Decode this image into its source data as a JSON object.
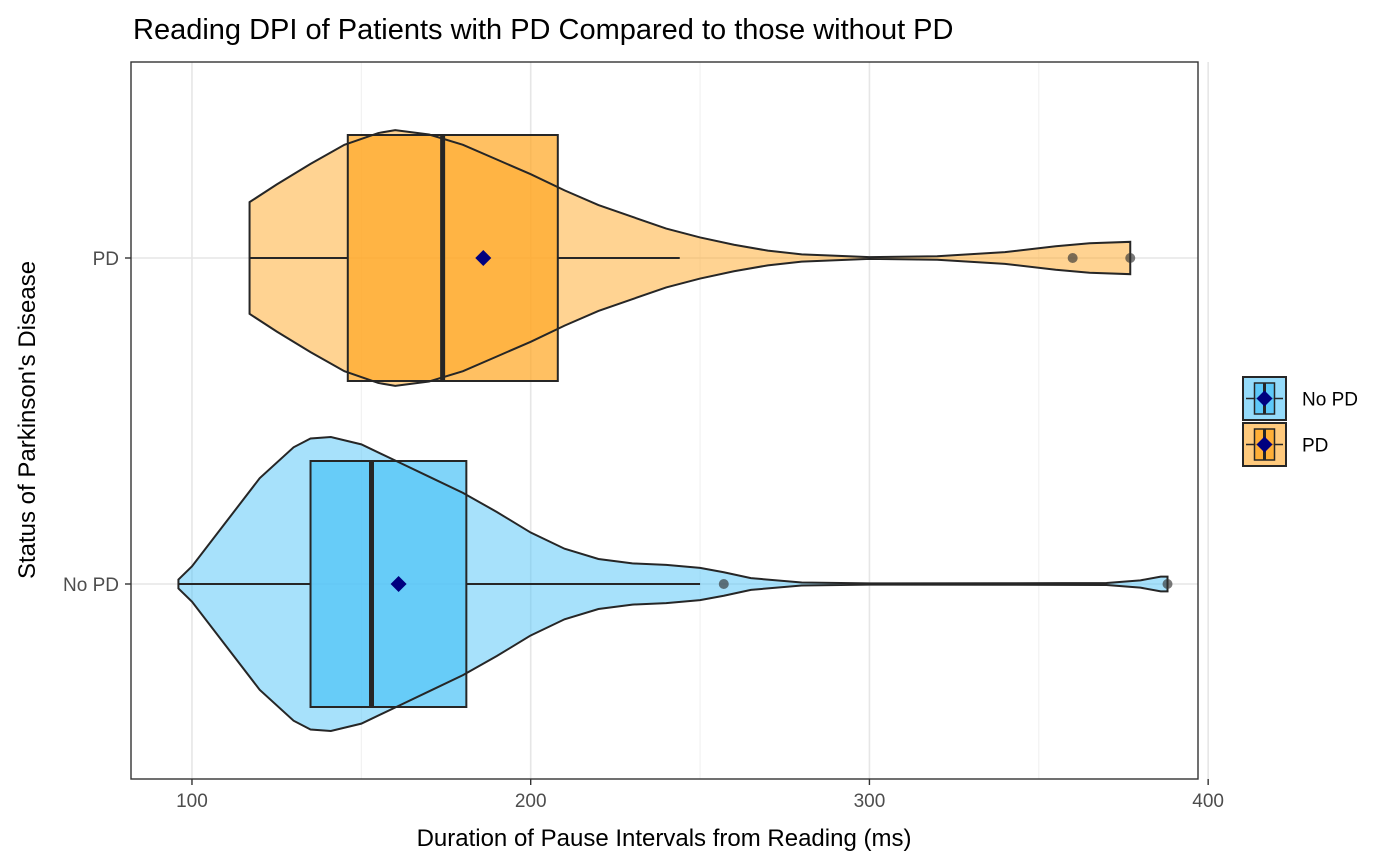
{
  "chart_data": {
    "type": "violin",
    "title": "Reading DPI of Patients with PD Compared to those without PD",
    "xlabel": "Duration of Pause Intervals from Reading (ms)",
    "ylabel": "Status of Parkinson's Disease",
    "xlim": [
      82,
      397
    ],
    "x_ticks": [
      100,
      200,
      300,
      400
    ],
    "categories": [
      "No PD",
      "PD"
    ],
    "grid": true,
    "legend_position": "right",
    "mean_marker_color": "#00007f",
    "series": [
      {
        "name": "No PD",
        "color": "#4fc3f7",
        "box": {
          "whisker_low": 96,
          "q1": 135,
          "median": 153,
          "q3": 181,
          "whisker_high": 250
        },
        "mean": 161,
        "outliers": [
          257,
          388
        ],
        "density": [
          [
            96,
            0.03
          ],
          [
            100,
            0.12
          ],
          [
            110,
            0.42
          ],
          [
            120,
            0.72
          ],
          [
            130,
            0.93
          ],
          [
            135,
            0.99
          ],
          [
            141,
            1.0
          ],
          [
            150,
            0.95
          ],
          [
            160,
            0.84
          ],
          [
            170,
            0.73
          ],
          [
            180,
            0.62
          ],
          [
            190,
            0.49
          ],
          [
            200,
            0.35
          ],
          [
            210,
            0.24
          ],
          [
            220,
            0.17
          ],
          [
            230,
            0.14
          ],
          [
            240,
            0.13
          ],
          [
            250,
            0.11
          ],
          [
            257,
            0.08
          ],
          [
            265,
            0.04
          ],
          [
            280,
            0.01
          ],
          [
            300,
            0.004
          ],
          [
            340,
            0.005
          ],
          [
            370,
            0.007
          ],
          [
            380,
            0.025
          ],
          [
            386,
            0.05
          ],
          [
            388,
            0.05
          ]
        ]
      },
      {
        "name": "PD",
        "color": "#ffa726",
        "box": {
          "whisker_low": 117,
          "q1": 146,
          "median": 174,
          "q3": 208,
          "whisker_high": 244
        },
        "mean": 186,
        "outliers": [
          360,
          377
        ],
        "density": [
          [
            117,
            0.38
          ],
          [
            125,
            0.5
          ],
          [
            135,
            0.64
          ],
          [
            145,
            0.77
          ],
          [
            155,
            0.85
          ],
          [
            160,
            0.87
          ],
          [
            170,
            0.84
          ],
          [
            180,
            0.77
          ],
          [
            190,
            0.67
          ],
          [
            200,
            0.57
          ],
          [
            210,
            0.46
          ],
          [
            220,
            0.36
          ],
          [
            230,
            0.28
          ],
          [
            240,
            0.2
          ],
          [
            250,
            0.14
          ],
          [
            260,
            0.09
          ],
          [
            270,
            0.05
          ],
          [
            280,
            0.025
          ],
          [
            300,
            0.006
          ],
          [
            320,
            0.012
          ],
          [
            340,
            0.04
          ],
          [
            355,
            0.08
          ],
          [
            365,
            0.1
          ],
          [
            377,
            0.11
          ]
        ]
      }
    ]
  }
}
